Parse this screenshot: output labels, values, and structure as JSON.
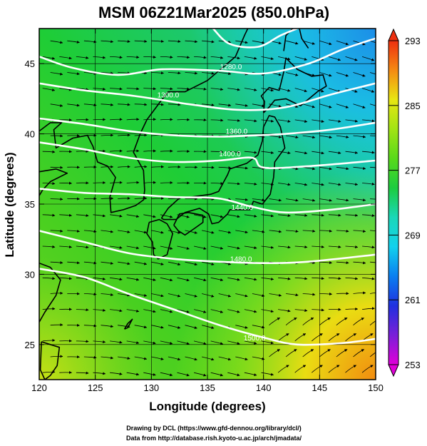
{
  "title": "MSM 06Z21Mar2025 (850.0hPa)",
  "xlabel": "Longitude (degrees)",
  "ylabel": "Latitude  (degrees)",
  "credits": [
    "Drawing by DCL (https://www.gfd-dennou.org/library/dcl/)",
    "Data from http://database.rish.kyoto-u.ac.jp/arch/jmadata/"
  ],
  "map": {
    "lon_range": [
      120,
      150
    ],
    "lat_range": [
      22.5,
      47.5
    ],
    "lon_ticks": [
      "120",
      "125",
      "130",
      "135",
      "140",
      "145",
      "150"
    ],
    "lat_ticks": [
      "25",
      "30",
      "35",
      "40",
      "45"
    ],
    "grid": true,
    "shading_field": "temperature (K)",
    "contour_field": "geopotential height (m)",
    "contour_labels": [
      {
        "text": "1280.0",
        "lon": 137.1,
        "lat": 44.6
      },
      {
        "text": "1300.0",
        "lon": 131.5,
        "lat": 42.6
      },
      {
        "text": "1360.0",
        "lon": 137.6,
        "lat": 40.0
      },
      {
        "text": "1400.0",
        "lon": 137.0,
        "lat": 38.4
      },
      {
        "text": "1440.0",
        "lon": 138.1,
        "lat": 34.6
      },
      {
        "text": "1480.0",
        "lon": 138.0,
        "lat": 30.9
      },
      {
        "text": "1500.0",
        "lon": 139.2,
        "lat": 25.3
      }
    ],
    "contours_deg": [
      [
        [
          135.5,
          47.5
        ],
        [
          137.0,
          46.4
        ],
        [
          139.5,
          46.2
        ],
        [
          141.5,
          47.0
        ],
        [
          143.0,
          47.5
        ]
      ],
      [
        [
          120.0,
          45.5
        ],
        [
          123.0,
          44.7
        ],
        [
          127.0,
          44.2
        ],
        [
          131.0,
          44.6
        ],
        [
          136.0,
          44.5
        ],
        [
          140.0,
          44.3
        ],
        [
          144.0,
          45.0
        ],
        [
          147.0,
          46.0
        ],
        [
          150.0,
          46.8
        ]
      ],
      [
        [
          120.0,
          43.6
        ],
        [
          124.0,
          43.1
        ],
        [
          128.5,
          42.7
        ],
        [
          133.5,
          42.1
        ],
        [
          138.0,
          41.7
        ],
        [
          142.0,
          41.9
        ],
        [
          146.0,
          42.8
        ],
        [
          150.0,
          43.6
        ]
      ],
      [
        [
          120.0,
          41.1
        ],
        [
          124.0,
          40.7
        ],
        [
          128.0,
          40.2
        ],
        [
          132.0,
          39.9
        ],
        [
          136.0,
          39.8
        ],
        [
          139.5,
          39.9
        ],
        [
          142.0,
          40.0
        ],
        [
          146.0,
          40.3
        ],
        [
          150.0,
          40.8
        ]
      ],
      [
        [
          120.0,
          39.4
        ],
        [
          124.0,
          38.9
        ],
        [
          128.0,
          38.3
        ],
        [
          132.0,
          38.0
        ],
        [
          136.0,
          38.1
        ],
        [
          139.0,
          38.3
        ],
        [
          140.0,
          37.6
        ],
        [
          144.0,
          37.7
        ],
        [
          150.0,
          38.1
        ]
      ],
      [
        [
          120.0,
          36.1
        ],
        [
          124.0,
          35.8
        ],
        [
          128.0,
          35.7
        ],
        [
          132.0,
          35.5
        ],
        [
          136.0,
          35.4
        ],
        [
          139.0,
          34.8
        ],
        [
          142.0,
          34.4
        ],
        [
          146.0,
          34.6
        ],
        [
          150.0,
          35.0
        ]
      ],
      [
        [
          120.0,
          33.1
        ],
        [
          124.0,
          32.3
        ],
        [
          128.0,
          31.5
        ],
        [
          132.0,
          31.1
        ],
        [
          136.0,
          30.9
        ],
        [
          140.0,
          30.8
        ],
        [
          144.0,
          30.9
        ],
        [
          150.0,
          31.4
        ]
      ],
      [
        [
          120.0,
          30.4
        ],
        [
          124.0,
          29.8
        ],
        [
          128.0,
          28.6
        ],
        [
          132.0,
          27.5
        ],
        [
          136.0,
          26.4
        ],
        [
          140.0,
          25.5
        ],
        [
          143.0,
          25.0
        ],
        [
          147.0,
          25.1
        ],
        [
          150.0,
          25.4
        ]
      ]
    ],
    "coastlines_deg": [
      [
        [
          130.9,
          42.4
        ],
        [
          131.5,
          43.0
        ],
        [
          133.0,
          43.0
        ],
        [
          135.0,
          43.8
        ],
        [
          137.5,
          45.5
        ],
        [
          138.3,
          47.0
        ],
        [
          138.6,
          47.5
        ]
      ],
      [
        [
          130.9,
          42.4
        ],
        [
          129.6,
          41.0
        ],
        [
          129.0,
          40.0
        ],
        [
          128.4,
          38.7
        ],
        [
          129.3,
          37.4
        ],
        [
          129.4,
          36.0
        ],
        [
          129.3,
          35.3
        ],
        [
          128.6,
          34.9
        ],
        [
          127.5,
          34.6
        ],
        [
          126.4,
          34.4
        ],
        [
          126.3,
          35.5
        ],
        [
          126.8,
          36.9
        ],
        [
          126.1,
          37.7
        ],
        [
          125.2,
          38.0
        ],
        [
          124.8,
          39.1
        ],
        [
          124.3,
          39.9
        ],
        [
          123.0,
          39.7
        ],
        [
          121.5,
          39.0
        ],
        [
          121.3,
          40.3
        ],
        [
          122.0,
          40.8
        ],
        [
          121.0,
          40.8
        ],
        [
          120.0,
          40.2
        ]
      ],
      [
        [
          120.0,
          37.3
        ],
        [
          121.5,
          37.5
        ],
        [
          122.5,
          37.2
        ],
        [
          121.0,
          36.6
        ],
        [
          120.3,
          36.0
        ],
        [
          120.0,
          35.6
        ]
      ],
      [
        [
          120.0,
          30.8
        ],
        [
          121.0,
          30.5
        ],
        [
          121.9,
          29.6
        ],
        [
          121.5,
          28.5
        ],
        [
          120.5,
          27.3
        ],
        [
          120.0,
          26.6
        ]
      ],
      [
        [
          120.2,
          25.2
        ],
        [
          121.0,
          25.0
        ],
        [
          121.8,
          24.8
        ],
        [
          121.6,
          23.5
        ],
        [
          121.0,
          22.8
        ],
        [
          120.5,
          22.5
        ],
        [
          120.1,
          23.2
        ],
        [
          120.2,
          25.2
        ]
      ],
      [
        [
          129.8,
          33.7
        ],
        [
          130.7,
          33.9
        ],
        [
          131.4,
          33.6
        ],
        [
          131.9,
          32.9
        ],
        [
          131.4,
          31.4
        ],
        [
          130.6,
          31.1
        ],
        [
          130.2,
          31.4
        ],
        [
          130.1,
          32.3
        ],
        [
          129.6,
          32.9
        ],
        [
          129.8,
          33.7
        ]
      ],
      [
        [
          132.0,
          33.5
        ],
        [
          132.5,
          34.3
        ],
        [
          133.3,
          34.4
        ],
        [
          134.6,
          34.2
        ],
        [
          134.6,
          33.7
        ],
        [
          133.9,
          33.3
        ],
        [
          133.0,
          32.8
        ],
        [
          132.4,
          33.1
        ],
        [
          132.0,
          33.5
        ]
      ],
      [
        [
          130.9,
          34.0
        ],
        [
          131.5,
          34.7
        ],
        [
          132.6,
          35.5
        ],
        [
          133.5,
          35.5
        ],
        [
          135.3,
          35.7
        ],
        [
          136.0,
          35.9
        ],
        [
          136.8,
          37.1
        ],
        [
          137.0,
          37.5
        ],
        [
          138.5,
          37.9
        ],
        [
          139.5,
          38.5
        ],
        [
          139.9,
          39.5
        ],
        [
          140.0,
          40.5
        ],
        [
          140.5,
          41.3
        ],
        [
          141.0,
          41.2
        ],
        [
          141.5,
          40.5
        ],
        [
          141.9,
          39.0
        ],
        [
          141.0,
          38.0
        ],
        [
          140.9,
          36.9
        ],
        [
          140.6,
          35.7
        ],
        [
          139.9,
          35.0
        ],
        [
          139.1,
          35.2
        ],
        [
          138.8,
          34.6
        ],
        [
          137.9,
          34.6
        ],
        [
          137.0,
          34.6
        ],
        [
          136.8,
          34.3
        ],
        [
          136.0,
          33.7
        ],
        [
          135.4,
          33.6
        ],
        [
          135.1,
          34.3
        ],
        [
          134.3,
          34.7
        ],
        [
          133.0,
          34.4
        ],
        [
          132.2,
          33.9
        ],
        [
          131.1,
          33.9
        ],
        [
          130.9,
          34.0
        ]
      ],
      [
        [
          140.0,
          41.5
        ],
        [
          140.1,
          42.3
        ],
        [
          139.8,
          42.7
        ],
        [
          140.5,
          43.3
        ],
        [
          141.4,
          43.1
        ],
        [
          141.8,
          44.4
        ],
        [
          142.0,
          45.4
        ],
        [
          143.0,
          44.6
        ],
        [
          144.3,
          44.1
        ],
        [
          145.3,
          44.2
        ],
        [
          145.6,
          43.4
        ],
        [
          144.8,
          43.0
        ],
        [
          143.3,
          42.0
        ],
        [
          142.0,
          42.5
        ],
        [
          141.0,
          42.4
        ],
        [
          140.5,
          41.9
        ],
        [
          140.0,
          41.5
        ]
      ],
      [
        [
          141.8,
          45.9
        ],
        [
          142.0,
          47.0
        ],
        [
          142.6,
          47.5
        ]
      ],
      [
        [
          143.2,
          47.5
        ],
        [
          143.4,
          46.8
        ],
        [
          144.0,
          46.1
        ]
      ],
      [
        [
          127.6,
          26.1
        ],
        [
          127.9,
          26.5
        ],
        [
          128.3,
          26.8
        ],
        [
          127.9,
          26.2
        ],
        [
          127.6,
          26.1
        ]
      ]
    ],
    "arrows": {
      "spacing_deg": 1.5,
      "color": "#000000"
    }
  },
  "colorbar": {
    "min": 253,
    "max": 293,
    "ticks": [
      "293",
      "285",
      "277",
      "269",
      "261",
      "253"
    ],
    "colors": [
      "#e000d8",
      "#7a1fd8",
      "#2030e0",
      "#0a7ff0",
      "#12d2ee",
      "#1ad7b8",
      "#1ccc40",
      "#58da1a",
      "#a2e414",
      "#e8e612",
      "#f58a12",
      "#ee3010"
    ]
  }
}
